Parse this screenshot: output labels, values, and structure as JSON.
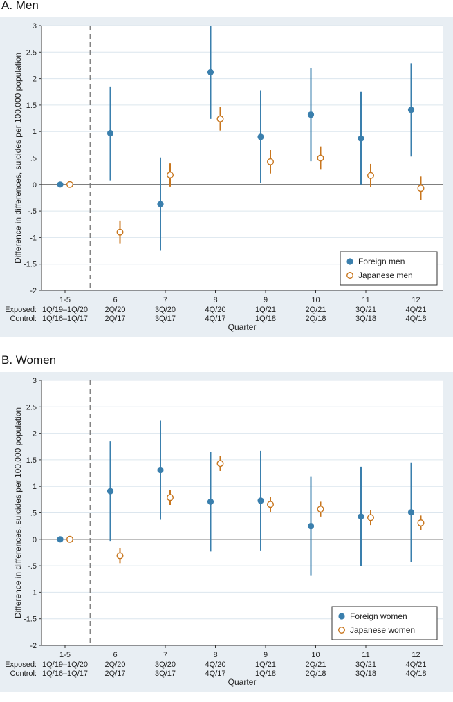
{
  "colors": {
    "outer_bg": "#e8eef3",
    "plot_bg": "#ffffff",
    "grid": "#dce6ee",
    "foreign": "#3a7fad",
    "japanese": "#c8761e",
    "zero_line": "#555555",
    "dashed_line": "#777777"
  },
  "chart_data": [
    {
      "type": "scatter",
      "panel_title": "A. Men",
      "ylabel": "Difference in differences, suicides per 100,000 population",
      "xlabel": "Quarter",
      "ylim": [
        -2,
        3
      ],
      "yticks": [
        3,
        2.5,
        2,
        1.5,
        1,
        0.5,
        0,
        -0.5,
        -1,
        -1.5,
        -2
      ],
      "ytick_labels": [
        "3",
        "2.5",
        "2",
        "1.5",
        "1",
        ".5",
        "0",
        "-.5",
        "-1",
        "-1.5",
        "-2"
      ],
      "row_labels": {
        "exposed": "Exposed:",
        "control": "Control:"
      },
      "categories": [
        {
          "label": "1-5",
          "exposed": "1Q/19–1Q/20",
          "control": "1Q/16–1Q/17"
        },
        {
          "label": "6",
          "exposed": "2Q/20",
          "control": "2Q/17"
        },
        {
          "label": "7",
          "exposed": "3Q/20",
          "control": "3Q/17"
        },
        {
          "label": "8",
          "exposed": "4Q/20",
          "control": "4Q/17"
        },
        {
          "label": "9",
          "exposed": "1Q/21",
          "control": "1Q/18"
        },
        {
          "label": "10",
          "exposed": "2Q/21",
          "control": "2Q/18"
        },
        {
          "label": "11",
          "exposed": "3Q/21",
          "control": "3Q/18"
        },
        {
          "label": "12",
          "exposed": "4Q/21",
          "control": "4Q/18"
        }
      ],
      "series": [
        {
          "name": "Foreign men",
          "marker": "filled-circle",
          "values": [
            0,
            0.97,
            -0.37,
            2.12,
            0.9,
            1.32,
            0.87,
            1.41
          ],
          "ci_low": [
            0,
            0.08,
            -1.25,
            1.24,
            0.03,
            0.44,
            0.0,
            0.53
          ],
          "ci_high": [
            0,
            1.84,
            0.51,
            3.0,
            1.78,
            2.2,
            1.75,
            2.29
          ]
        },
        {
          "name": "Japanese men",
          "marker": "hollow-circle",
          "values": [
            0,
            -0.9,
            0.18,
            1.24,
            0.43,
            0.5,
            0.17,
            -0.07
          ],
          "ci_low": [
            0,
            -1.12,
            -0.04,
            1.02,
            0.21,
            0.28,
            -0.05,
            -0.29
          ],
          "ci_high": [
            0,
            -0.68,
            0.4,
            1.46,
            0.65,
            0.72,
            0.39,
            0.15
          ]
        }
      ],
      "legend_position": "bottom-right"
    },
    {
      "type": "scatter",
      "panel_title": "B. Women",
      "ylabel": "Difference in differences, suicides per 100,000 population",
      "xlabel": "Quarter",
      "ylim": [
        -2,
        3
      ],
      "yticks": [
        3,
        2.5,
        2,
        1.5,
        1,
        0.5,
        0,
        -0.5,
        -1,
        -1.5,
        -2
      ],
      "ytick_labels": [
        "3",
        "2.5",
        "2",
        "1.5",
        "1",
        ".5",
        "0",
        "-.5",
        "-1",
        "-1.5",
        "-2"
      ],
      "row_labels": {
        "exposed": "Exposed:",
        "control": "Control:"
      },
      "categories": [
        {
          "label": "1-5",
          "exposed": "1Q/19–1Q/20",
          "control": "1Q/16–1Q/17"
        },
        {
          "label": "6",
          "exposed": "2Q/20",
          "control": "2Q/17"
        },
        {
          "label": "7",
          "exposed": "3Q/20",
          "control": "3Q/17"
        },
        {
          "label": "8",
          "exposed": "4Q/20",
          "control": "4Q/17"
        },
        {
          "label": "9",
          "exposed": "1Q/21",
          "control": "1Q/18"
        },
        {
          "label": "10",
          "exposed": "2Q/21",
          "control": "2Q/18"
        },
        {
          "label": "11",
          "exposed": "3Q/21",
          "control": "3Q/18"
        },
        {
          "label": "12",
          "exposed": "4Q/21",
          "control": "4Q/18"
        }
      ],
      "series": [
        {
          "name": "Foreign women",
          "marker": "filled-circle",
          "values": [
            0,
            0.91,
            1.31,
            0.71,
            0.73,
            0.25,
            0.43,
            0.51
          ],
          "ci_low": [
            0,
            -0.03,
            0.37,
            -0.23,
            -0.21,
            -0.69,
            -0.51,
            -0.43
          ],
          "ci_high": [
            0,
            1.85,
            2.25,
            1.65,
            1.67,
            1.19,
            1.37,
            1.45
          ]
        },
        {
          "name": "Japanese women",
          "marker": "hollow-circle",
          "values": [
            0,
            -0.31,
            0.79,
            1.43,
            0.66,
            0.57,
            0.41,
            0.31
          ],
          "ci_low": [
            0,
            -0.45,
            0.65,
            1.29,
            0.52,
            0.43,
            0.27,
            0.17
          ],
          "ci_high": [
            0,
            -0.17,
            0.93,
            1.57,
            0.8,
            0.71,
            0.55,
            0.45
          ]
        }
      ],
      "legend_position": "bottom-right"
    }
  ]
}
